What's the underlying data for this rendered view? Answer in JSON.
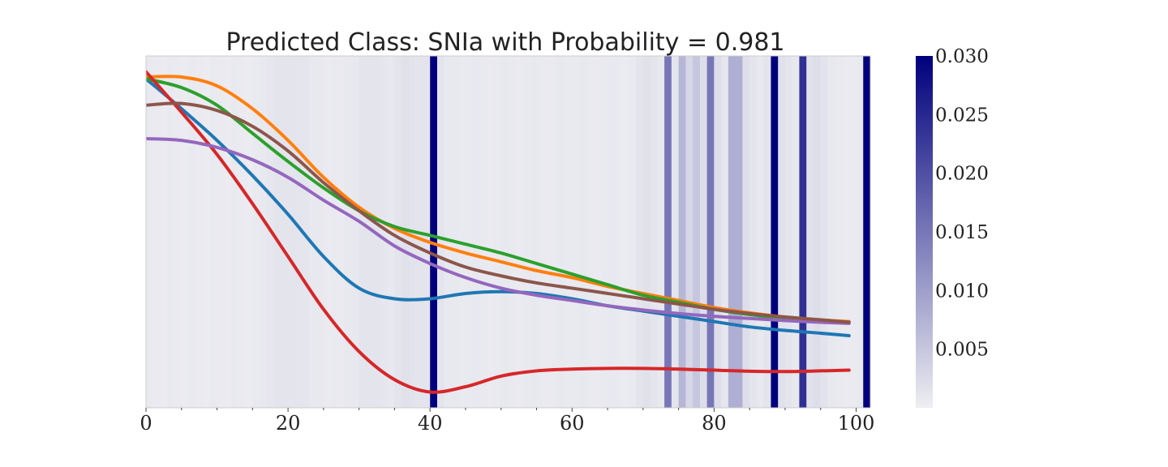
{
  "chart_data": {
    "type": "line",
    "title": "Predicted Class: SNIa with Probability = 0.981",
    "xlabel": "",
    "ylabel": "",
    "xlim": [
      0,
      102
    ],
    "ylim": [
      0,
      1
    ],
    "x_ticks": [
      "0",
      "20",
      "40",
      "60",
      "80",
      "100"
    ],
    "x_tick_values": [
      0,
      20,
      40,
      60,
      80,
      100
    ],
    "x_minor_tick_values": [
      5,
      10,
      15,
      25,
      30,
      35,
      45,
      50,
      55,
      65,
      70,
      75,
      85,
      90,
      95
    ],
    "y_ticks_visible": false,
    "grid": false,
    "plot_background": "#eeeef2",
    "series": [
      {
        "color": "#1f77b4",
        "points": [
          [
            0,
            0.935
          ],
          [
            5,
            0.85
          ],
          [
            10,
            0.76
          ],
          [
            15,
            0.66
          ],
          [
            20,
            0.55
          ],
          [
            25,
            0.43
          ],
          [
            30,
            0.34
          ],
          [
            35,
            0.31
          ],
          [
            40,
            0.31
          ],
          [
            45,
            0.325
          ],
          [
            50,
            0.33
          ],
          [
            55,
            0.325
          ],
          [
            60,
            0.31
          ],
          [
            65,
            0.29
          ],
          [
            70,
            0.275
          ],
          [
            75,
            0.26
          ],
          [
            80,
            0.245
          ],
          [
            85,
            0.23
          ],
          [
            90,
            0.22
          ],
          [
            95,
            0.212
          ],
          [
            99,
            0.205
          ]
        ]
      },
      {
        "color": "#ff7f0e",
        "points": [
          [
            0,
            0.94
          ],
          [
            5,
            0.94
          ],
          [
            10,
            0.915
          ],
          [
            15,
            0.85
          ],
          [
            20,
            0.76
          ],
          [
            25,
            0.655
          ],
          [
            30,
            0.57
          ],
          [
            35,
            0.51
          ],
          [
            40,
            0.47
          ],
          [
            45,
            0.44
          ],
          [
            50,
            0.415
          ],
          [
            55,
            0.39
          ],
          [
            60,
            0.37
          ],
          [
            65,
            0.345
          ],
          [
            70,
            0.325
          ],
          [
            75,
            0.305
          ],
          [
            80,
            0.285
          ],
          [
            85,
            0.27
          ],
          [
            90,
            0.258
          ],
          [
            95,
            0.25
          ],
          [
            99,
            0.245
          ]
        ]
      },
      {
        "color": "#2ca02c",
        "points": [
          [
            0,
            0.935
          ],
          [
            5,
            0.91
          ],
          [
            10,
            0.86
          ],
          [
            15,
            0.78
          ],
          [
            20,
            0.7
          ],
          [
            25,
            0.625
          ],
          [
            30,
            0.56
          ],
          [
            35,
            0.515
          ],
          [
            40,
            0.49
          ],
          [
            45,
            0.465
          ],
          [
            50,
            0.44
          ],
          [
            55,
            0.41
          ],
          [
            60,
            0.38
          ],
          [
            65,
            0.35
          ],
          [
            70,
            0.32
          ],
          [
            75,
            0.3
          ],
          [
            80,
            0.28
          ],
          [
            85,
            0.265
          ],
          [
            90,
            0.255
          ],
          [
            95,
            0.248
          ],
          [
            99,
            0.243
          ]
        ]
      },
      {
        "color": "#d62728",
        "points": [
          [
            0,
            0.955
          ],
          [
            5,
            0.84
          ],
          [
            10,
            0.72
          ],
          [
            15,
            0.58
          ],
          [
            20,
            0.43
          ],
          [
            25,
            0.28
          ],
          [
            30,
            0.16
          ],
          [
            35,
            0.08
          ],
          [
            40,
            0.045
          ],
          [
            45,
            0.06
          ],
          [
            50,
            0.09
          ],
          [
            55,
            0.105
          ],
          [
            60,
            0.11
          ],
          [
            65,
            0.112
          ],
          [
            70,
            0.112
          ],
          [
            75,
            0.11
          ],
          [
            80,
            0.107
          ],
          [
            85,
            0.104
          ],
          [
            90,
            0.103
          ],
          [
            95,
            0.105
          ],
          [
            99,
            0.107
          ]
        ]
      },
      {
        "color": "#9467bd",
        "points": [
          [
            0,
            0.765
          ],
          [
            5,
            0.76
          ],
          [
            10,
            0.74
          ],
          [
            15,
            0.705
          ],
          [
            20,
            0.655
          ],
          [
            25,
            0.59
          ],
          [
            30,
            0.53
          ],
          [
            35,
            0.46
          ],
          [
            40,
            0.41
          ],
          [
            45,
            0.37
          ],
          [
            50,
            0.34
          ],
          [
            55,
            0.32
          ],
          [
            60,
            0.305
          ],
          [
            65,
            0.29
          ],
          [
            70,
            0.278
          ],
          [
            75,
            0.268
          ],
          [
            80,
            0.26
          ],
          [
            85,
            0.254
          ],
          [
            90,
            0.248
          ],
          [
            95,
            0.243
          ],
          [
            99,
            0.24
          ]
        ]
      },
      {
        "color": "#8c564b",
        "points": [
          [
            0,
            0.86
          ],
          [
            5,
            0.865
          ],
          [
            10,
            0.845
          ],
          [
            15,
            0.8
          ],
          [
            20,
            0.73
          ],
          [
            25,
            0.64
          ],
          [
            30,
            0.56
          ],
          [
            35,
            0.49
          ],
          [
            40,
            0.44
          ],
          [
            45,
            0.4
          ],
          [
            50,
            0.375
          ],
          [
            55,
            0.355
          ],
          [
            60,
            0.34
          ],
          [
            65,
            0.325
          ],
          [
            70,
            0.31
          ],
          [
            75,
            0.295
          ],
          [
            80,
            0.28
          ],
          [
            85,
            0.268
          ],
          [
            90,
            0.258
          ],
          [
            95,
            0.25
          ],
          [
            99,
            0.243
          ]
        ]
      }
    ],
    "attention_band_width": 1,
    "attention_bands": [
      [
        0,
        0.0006
      ],
      [
        1,
        0.0005
      ],
      [
        2,
        0.0004
      ],
      [
        3,
        0.0006
      ],
      [
        4,
        0.0005
      ],
      [
        5,
        0.0004
      ],
      [
        6,
        0.0006
      ],
      [
        7,
        0.0005
      ],
      [
        8,
        0.0004
      ],
      [
        9,
        0.0006
      ],
      [
        10,
        0.0005
      ],
      [
        11,
        0.0004
      ],
      [
        12,
        0.0006
      ],
      [
        13,
        0.0005
      ],
      [
        14,
        0.0004
      ],
      [
        15,
        0.0006
      ],
      [
        16,
        0.0008
      ],
      [
        17,
        0.001
      ],
      [
        18,
        0.0012
      ],
      [
        19,
        0.0012
      ],
      [
        20,
        0.0013
      ],
      [
        21,
        0.0012
      ],
      [
        22,
        0.0011
      ],
      [
        23,
        0.0008
      ],
      [
        24,
        0.0007
      ],
      [
        25,
        0.0005
      ],
      [
        26,
        0.0006
      ],
      [
        27,
        0.0005
      ],
      [
        28,
        0.0007
      ],
      [
        29,
        0.0008
      ],
      [
        30,
        0.0012
      ],
      [
        31,
        0.0013
      ],
      [
        32,
        0.0012
      ],
      [
        33,
        0.001
      ],
      [
        34,
        0.0008
      ],
      [
        35,
        0.0012
      ],
      [
        36,
        0.0016
      ],
      [
        37,
        0.0014
      ],
      [
        38,
        0.0012
      ],
      [
        39,
        0.0013
      ],
      [
        40,
        0.03
      ],
      [
        41,
        0.0012
      ],
      [
        42,
        0.0008
      ],
      [
        43,
        0.0007
      ],
      [
        44,
        0.0006
      ],
      [
        45,
        0.0006
      ],
      [
        46,
        0.0007
      ],
      [
        47,
        0.0006
      ],
      [
        48,
        0.0005
      ],
      [
        49,
        0.0006
      ],
      [
        50,
        0.0007
      ],
      [
        51,
        0.0006
      ],
      [
        52,
        0.0005
      ],
      [
        53,
        0.0006
      ],
      [
        54,
        0.0007
      ],
      [
        55,
        0.0006
      ],
      [
        56,
        0.0005
      ],
      [
        57,
        0.0006
      ],
      [
        58,
        0.0007
      ],
      [
        59,
        0.0006
      ],
      [
        60,
        0.0006
      ],
      [
        61,
        0.0007
      ],
      [
        62,
        0.0006
      ],
      [
        63,
        0.0005
      ],
      [
        64,
        0.0006
      ],
      [
        65,
        0.0007
      ],
      [
        66,
        0.0006
      ],
      [
        67,
        0.0005
      ],
      [
        68,
        0.0006
      ],
      [
        69,
        0.0012
      ],
      [
        70,
        0.0016
      ],
      [
        71,
        0.0012
      ],
      [
        72,
        0.0008
      ],
      [
        73,
        0.015
      ],
      [
        74,
        0.0012
      ],
      [
        75,
        0.007
      ],
      [
        76,
        0.003
      ],
      [
        77,
        0.005
      ],
      [
        78,
        0.002
      ],
      [
        79,
        0.015
      ],
      [
        80,
        0.002
      ],
      [
        81,
        0.001
      ],
      [
        82,
        0.008
      ],
      [
        83,
        0.008
      ],
      [
        84,
        0.002
      ],
      [
        85,
        0.0012
      ],
      [
        86,
        0.0008
      ],
      [
        87,
        0.0012
      ],
      [
        88,
        0.03
      ],
      [
        89,
        0.0016
      ],
      [
        90,
        0.0012
      ],
      [
        91,
        0.0008
      ],
      [
        92,
        0.024
      ],
      [
        93,
        0.0016
      ],
      [
        94,
        0.002
      ],
      [
        95,
        0.0014
      ],
      [
        96,
        0.0008
      ],
      [
        97,
        0.0006
      ],
      [
        98,
        0.0005
      ],
      [
        99,
        0.0005
      ],
      [
        100,
        0.0006
      ],
      [
        101,
        0.03
      ]
    ],
    "colorbar": {
      "min": 0,
      "max": 0.03,
      "tick_labels": [
        "0.005",
        "0.010",
        "0.015",
        "0.020",
        "0.025",
        "0.030"
      ],
      "tick_values": [
        0.005,
        0.01,
        0.015,
        0.02,
        0.025,
        0.03
      ],
      "color_low": "#eeeef2",
      "color_high": "#00007d"
    }
  }
}
